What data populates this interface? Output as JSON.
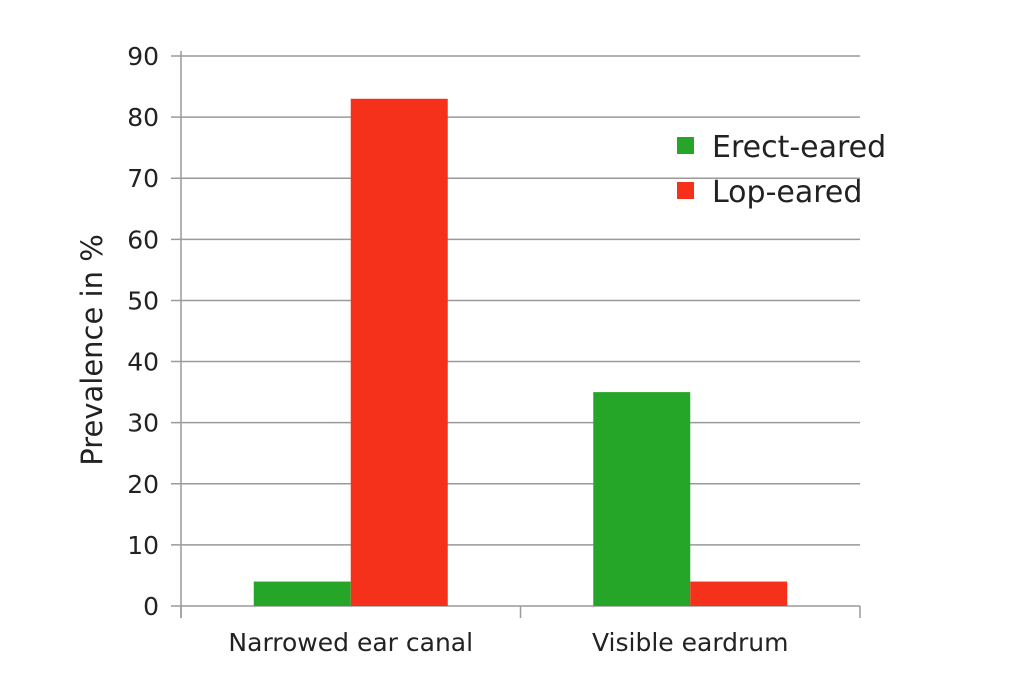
{
  "chart_data": {
    "type": "bar",
    "title": "",
    "xlabel": "",
    "ylabel": "Prevalence in %",
    "ylim": [
      0,
      90
    ],
    "yticks": [
      0,
      10,
      20,
      30,
      40,
      50,
      60,
      70,
      80,
      90
    ],
    "grid": true,
    "legend_position": "top-right",
    "categories": [
      "Narrowed ear canal",
      "Visible eardrum"
    ],
    "series": [
      {
        "name": "Erect-eared",
        "color": "#26a629",
        "values": [
          4,
          35
        ]
      },
      {
        "name": "Lop-eared",
        "color": "#f5301b",
        "values": [
          83,
          4
        ]
      }
    ]
  }
}
